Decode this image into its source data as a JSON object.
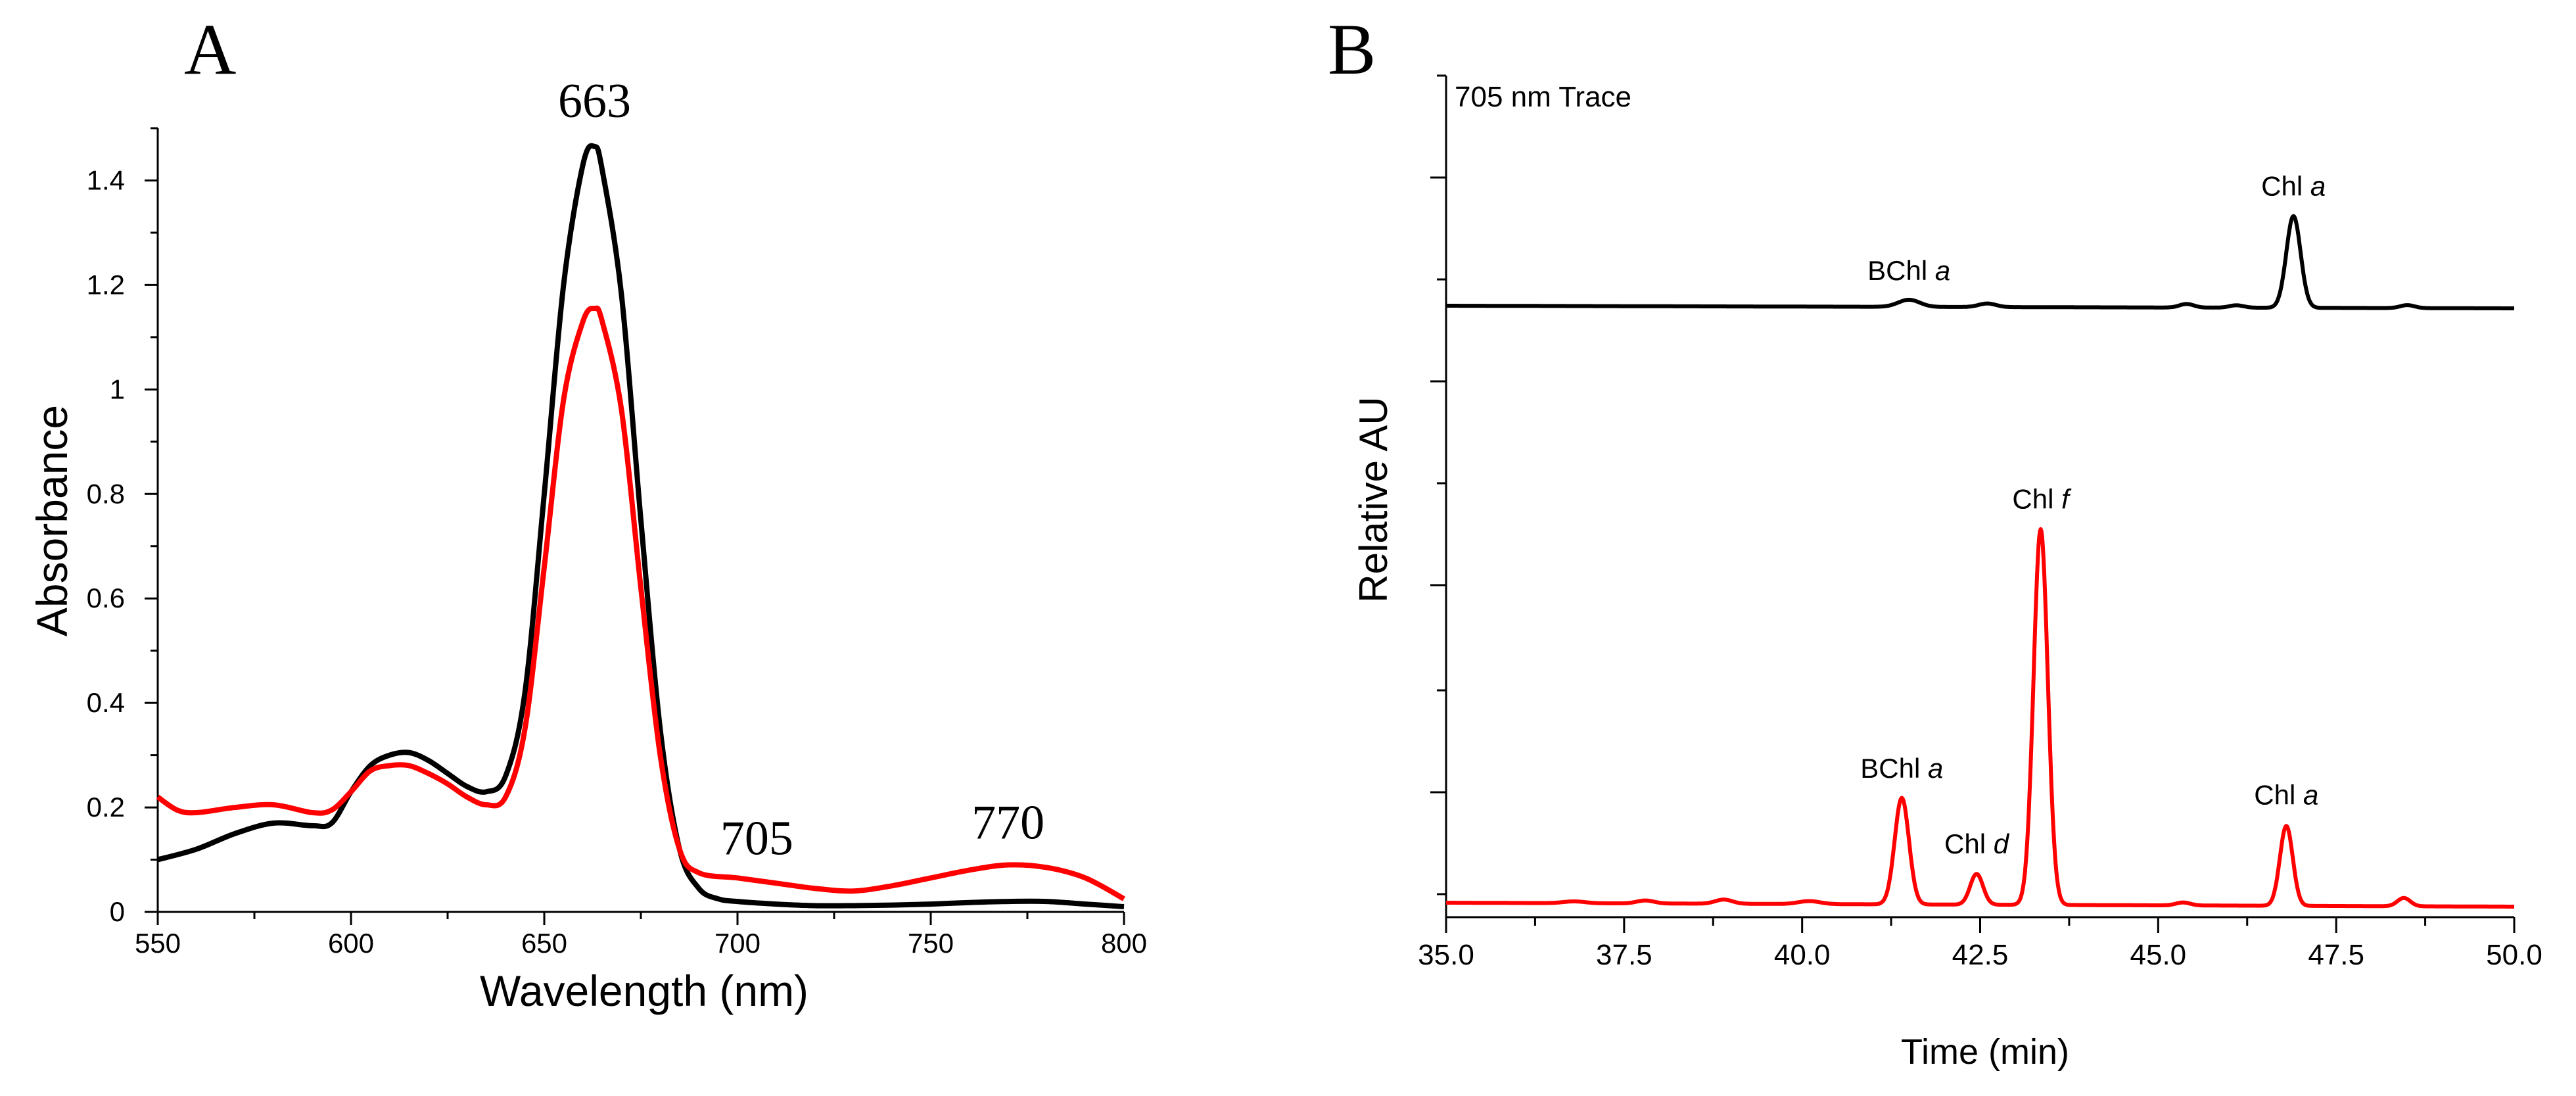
{
  "chart_data": [
    {
      "panel_label": "A",
      "type": "line",
      "xlabel": "Wavelength (nm)",
      "ylabel": "Absorbance",
      "xlim": [
        550,
        800
      ],
      "ylim": [
        0,
        1.5
      ],
      "x_ticks": [
        550,
        600,
        650,
        700,
        750,
        800
      ],
      "x_tick_labels": [
        "550",
        "600",
        "650",
        "700",
        "750",
        "800"
      ],
      "y_ticks": [
        0,
        0.2,
        0.4,
        0.6,
        0.8,
        1,
        1.2,
        1.4
      ],
      "y_tick_labels": [
        "0",
        "0.2",
        "0.4",
        "0.6",
        "0.8",
        "1",
        "1.2",
        "1.4"
      ],
      "grid": false,
      "annotations": [
        {
          "text": "663",
          "x": 663,
          "y": 1.5
        },
        {
          "text": "705",
          "x": 705,
          "y": 0.1
        },
        {
          "text": "770",
          "x": 770,
          "y": 0.13
        }
      ],
      "series": [
        {
          "name": "black",
          "color": "#000000",
          "x": [
            550,
            560,
            570,
            580,
            590,
            595,
            600,
            605,
            610,
            615,
            620,
            625,
            630,
            635,
            640,
            645,
            650,
            655,
            660,
            663,
            665,
            670,
            675,
            680,
            685,
            690,
            695,
            700,
            710,
            720,
            730,
            740,
            750,
            760,
            770,
            780,
            790,
            800
          ],
          "y": [
            0.1,
            0.12,
            0.15,
            0.17,
            0.165,
            0.17,
            0.23,
            0.28,
            0.3,
            0.305,
            0.29,
            0.265,
            0.24,
            0.23,
            0.26,
            0.42,
            0.8,
            1.2,
            1.43,
            1.465,
            1.42,
            1.18,
            0.75,
            0.35,
            0.12,
            0.045,
            0.025,
            0.02,
            0.015,
            0.012,
            0.012,
            0.013,
            0.015,
            0.018,
            0.02,
            0.02,
            0.015,
            0.01
          ]
        },
        {
          "name": "red",
          "color": "#ff0000",
          "x": [
            550,
            555,
            560,
            570,
            580,
            590,
            595,
            600,
            605,
            610,
            615,
            620,
            625,
            630,
            635,
            640,
            645,
            650,
            655,
            660,
            663,
            665,
            670,
            675,
            680,
            685,
            690,
            700,
            710,
            720,
            730,
            740,
            750,
            760,
            770,
            780,
            790,
            800
          ],
          "y": [
            0.22,
            0.195,
            0.19,
            0.2,
            0.205,
            0.19,
            0.195,
            0.23,
            0.27,
            0.28,
            0.28,
            0.265,
            0.245,
            0.22,
            0.205,
            0.22,
            0.35,
            0.66,
            0.98,
            1.13,
            1.155,
            1.13,
            0.96,
            0.62,
            0.3,
            0.12,
            0.075,
            0.065,
            0.055,
            0.045,
            0.04,
            0.05,
            0.065,
            0.08,
            0.09,
            0.085,
            0.065,
            0.025
          ]
        }
      ]
    },
    {
      "panel_label": "B",
      "type": "line",
      "xlabel": "Time (min)",
      "ylabel": "Relative AU",
      "xlim": [
        35.0,
        50.0
      ],
      "x_ticks": [
        35.0,
        37.5,
        40.0,
        42.5,
        45.0,
        47.5,
        50.0
      ],
      "x_tick_labels": [
        "35.0",
        "37.5",
        "40.0",
        "42.5",
        "45.0",
        "47.5",
        "50.0"
      ],
      "y_tick_labels": [],
      "grid": false,
      "trace_label": "705 nm Trace",
      "series": [
        {
          "name": "black trace",
          "color": "#000000",
          "baseline": 0.0,
          "peaks": [
            {
              "center": 41.5,
              "height": 0.12,
              "width": 0.15
            },
            {
              "center": 42.6,
              "height": 0.06,
              "width": 0.12
            },
            {
              "center": 45.4,
              "height": 0.06,
              "width": 0.1
            },
            {
              "center": 46.1,
              "height": 0.04,
              "width": 0.1
            },
            {
              "center": 46.9,
              "height": 1.55,
              "width": 0.1
            },
            {
              "center": 48.5,
              "height": 0.05,
              "width": 0.1
            }
          ],
          "labels": [
            {
              "pre": "BChl ",
              "em": "a",
              "x": 41.5
            },
            {
              "pre": "Chl ",
              "em": "a",
              "x": 46.9
            }
          ]
        },
        {
          "name": "red trace",
          "color": "#ff0000",
          "baseline": 0.0,
          "peaks": [
            {
              "center": 36.8,
              "height": 0.03,
              "width": 0.15
            },
            {
              "center": 37.8,
              "height": 0.05,
              "width": 0.12
            },
            {
              "center": 38.9,
              "height": 0.07,
              "width": 0.12
            },
            {
              "center": 40.1,
              "height": 0.05,
              "width": 0.15
            },
            {
              "center": 41.4,
              "height": 1.8,
              "width": 0.1
            },
            {
              "center": 42.45,
              "height": 0.52,
              "width": 0.09
            },
            {
              "center": 43.35,
              "height": 6.35,
              "width": 0.1
            },
            {
              "center": 45.35,
              "height": 0.05,
              "width": 0.1
            },
            {
              "center": 46.8,
              "height": 1.35,
              "width": 0.09
            },
            {
              "center": 48.45,
              "height": 0.14,
              "width": 0.09
            }
          ],
          "labels": [
            {
              "pre": "BChl ",
              "em": "a",
              "x": 41.4
            },
            {
              "pre": "Chl ",
              "em": "d",
              "x": 42.45
            },
            {
              "pre": "Chl ",
              "em": "f",
              "x": 43.35
            },
            {
              "pre": "Chl ",
              "em": "a",
              "x": 46.8
            }
          ]
        }
      ]
    }
  ]
}
